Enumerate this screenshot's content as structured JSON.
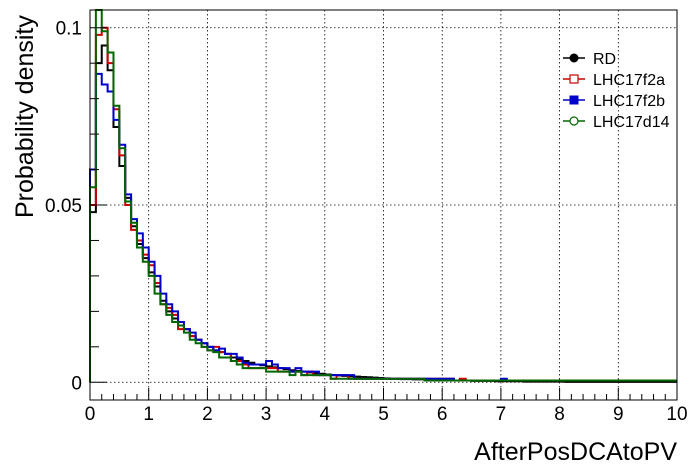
{
  "chart_data": {
    "type": "line",
    "xlabel": "AfterPosDCAtoPV",
    "ylabel": "Probability density",
    "xlim": [
      0,
      10
    ],
    "ylim": [
      -0.005,
      0.105
    ],
    "grid": true,
    "legend_placement": "top-right",
    "x_ticks": [
      "0",
      "1",
      "2",
      "3",
      "4",
      "5",
      "6",
      "7",
      "8",
      "9",
      "10"
    ],
    "y_ticks": [
      "0",
      "0.05",
      "0.1"
    ],
    "bin_width": 0.1,
    "series": [
      {
        "name": "RD",
        "color": "#000000",
        "marker": "filled-circle",
        "values": [
          0.048,
          0.09,
          0.095,
          0.088,
          0.072,
          0.061,
          0.052,
          0.044,
          0.039,
          0.035,
          0.031,
          0.027,
          0.023,
          0.02,
          0.018,
          0.016,
          0.015,
          0.013,
          0.012,
          0.011,
          0.01,
          0.009,
          0.0085,
          0.008,
          0.007,
          0.0065,
          0.006,
          0.0055,
          0.005,
          0.0048,
          0.0045,
          0.0042,
          0.004,
          0.0037,
          0.0034,
          0.0032,
          0.003,
          0.0028,
          0.0026,
          0.0024,
          0.0022,
          0.002,
          0.0019,
          0.0018,
          0.0017,
          0.0016,
          0.0015,
          0.0014,
          0.0013,
          0.0012,
          0.0011,
          0.001,
          0.001,
          0.0009,
          0.0009,
          0.0008,
          0.0008,
          0.0007,
          0.0007,
          0.0006,
          0.0006,
          0.0006,
          0.0005,
          0.0005,
          0.0005,
          0.0004,
          0.0004,
          0.0004,
          0.0004,
          0.0003,
          0.0003,
          0.0003,
          0.0003,
          0.0003,
          0.0002,
          0.0002,
          0.0002,
          0.0002,
          0.0002,
          0.0002,
          0.0002,
          0.0001,
          0.0001,
          0.0001,
          0.0001,
          0.0001,
          0.0001,
          0.0001,
          0.0001,
          0.0001,
          0.0001,
          0.0001,
          0.0001,
          0.0001,
          0.0001,
          0.0001,
          0.0001,
          0.0001,
          0.0001,
          0.0001
        ]
      },
      {
        "name": "LHC17f2a",
        "color": "#cc0000",
        "marker": "open-square",
        "values": [
          0.05,
          0.098,
          0.1,
          0.09,
          0.077,
          0.064,
          0.05,
          0.043,
          0.04,
          0.036,
          0.033,
          0.028,
          0.022,
          0.021,
          0.019,
          0.015,
          0.015,
          0.013,
          0.012,
          0.01,
          0.009,
          0.01,
          0.0085,
          0.008,
          0.006,
          0.006,
          0.005,
          0.004,
          0.004,
          0.004,
          0.004,
          0.004,
          0.003,
          0.003,
          0.003,
          0.003,
          0.002,
          0.003,
          0.002,
          0.002,
          0.002,
          0.001,
          0.002,
          0.002,
          0.001,
          0.001,
          0.001,
          0.001,
          0.001,
          0.001,
          0.001,
          0.001,
          0.001,
          0.001,
          0.001,
          0.001,
          0.001,
          0.001,
          0.001,
          0.001,
          0.001,
          0.001,
          0.0005,
          0.001,
          0.0005,
          0.0005,
          0.0005,
          0.0005,
          0.0005,
          0.0005,
          0.0005,
          0.0005,
          0.0005,
          0.0005,
          0.0005,
          0.0005,
          0.0005,
          0.0005,
          0.0005,
          0.0005,
          0.0005,
          0.0005,
          0.0005,
          0.0005,
          0.0005,
          0.0005,
          0.0005,
          0.0005,
          0.0005,
          0.0005,
          0.0005,
          0.0005,
          0.0005,
          0.0005,
          0.0005,
          0.0005,
          0.0005,
          0.0005,
          0.0005,
          0.0005
        ]
      },
      {
        "name": "LHC17f2b",
        "color": "#0000cc",
        "marker": "filled-square",
        "values": [
          0.06,
          0.087,
          0.084,
          0.082,
          0.074,
          0.067,
          0.053,
          0.046,
          0.042,
          0.038,
          0.034,
          0.03,
          0.025,
          0.022,
          0.02,
          0.017,
          0.015,
          0.014,
          0.012,
          0.011,
          0.01,
          0.009,
          0.0095,
          0.008,
          0.008,
          0.007,
          0.0055,
          0.005,
          0.005,
          0.005,
          0.006,
          0.005,
          0.004,
          0.004,
          0.003,
          0.004,
          0.003,
          0.003,
          0.003,
          0.002,
          0.002,
          0.002,
          0.002,
          0.002,
          0.002,
          0.001,
          0.001,
          0.001,
          0.001,
          0.001,
          0.001,
          0.001,
          0.001,
          0.001,
          0.001,
          0.001,
          0.001,
          0.001,
          0.001,
          0.001,
          0.001,
          0.001,
          0.0005,
          0.0005,
          0.0005,
          0.0005,
          0.0005,
          0.0005,
          0.0005,
          0.0005,
          0.001,
          0.0005,
          0.0005,
          0.0005,
          0.0005,
          0.0005,
          0.0005,
          0.0005,
          0.0005,
          0.0005,
          0.0005,
          0.0005,
          0.0005,
          0.0005,
          0.0005,
          0.0005,
          0.0005,
          0.0005,
          0.0005,
          0.0005,
          0.0005,
          0.0005,
          0.0005,
          0.0005,
          0.0005,
          0.0005,
          0.0005,
          0.0005,
          0.0005,
          0.0005
        ]
      },
      {
        "name": "LHC17d14",
        "color": "#006600",
        "marker": "open-circle",
        "values": [
          0.055,
          0.106,
          0.099,
          0.093,
          0.078,
          0.066,
          0.051,
          0.045,
          0.038,
          0.034,
          0.03,
          0.025,
          0.022,
          0.019,
          0.017,
          0.016,
          0.014,
          0.012,
          0.011,
          0.01,
          0.009,
          0.0085,
          0.007,
          0.007,
          0.006,
          0.005,
          0.004,
          0.004,
          0.004,
          0.004,
          0.003,
          0.003,
          0.003,
          0.003,
          0.002,
          0.003,
          0.002,
          0.002,
          0.002,
          0.002,
          0.002,
          0.001,
          0.001,
          0.001,
          0.001,
          0.001,
          0.001,
          0.001,
          0.001,
          0.001,
          0.001,
          0.001,
          0.001,
          0.001,
          0.001,
          0.001,
          0.001,
          0.0005,
          0.0005,
          0.0005,
          0.0005,
          0.0005,
          0.0005,
          0.0005,
          0.0005,
          0.0005,
          0.0005,
          0.0005,
          0.0005,
          0.0005,
          0.0005,
          0.0005,
          0.0005,
          0.0005,
          0.0005,
          0.0005,
          0.0005,
          0.0005,
          0.0005,
          0.0005,
          0.0005,
          0.0005,
          0.0005,
          0.0005,
          0.0005,
          0.0005,
          0.0005,
          0.0005,
          0.0005,
          0.0005,
          0.0005,
          0.0005,
          0.0005,
          0.0005,
          0.0005,
          0.0005,
          0.0005,
          0.0005,
          0.0005,
          0.0005
        ]
      }
    ]
  }
}
